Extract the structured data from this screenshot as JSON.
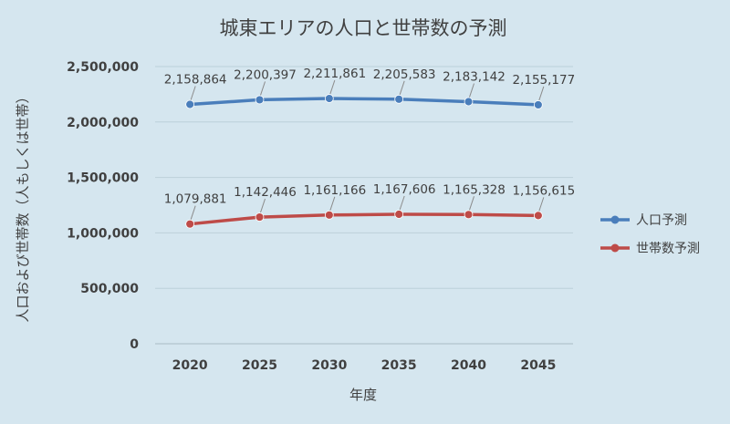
{
  "chart_data": {
    "type": "line",
    "title": "城東エリアの人口と世帯数の予測",
    "xlabel": "年度",
    "ylabel": "人口および世帯数（人もしくは世帯）",
    "categories": [
      "2020",
      "2025",
      "2030",
      "2035",
      "2040",
      "2045"
    ],
    "ylim": [
      0,
      2500000
    ],
    "yticks": [
      0,
      500000,
      1000000,
      1500000,
      2000000,
      2500000
    ],
    "ytick_labels": [
      "0",
      "500,000",
      "1,000,000",
      "1,500,000",
      "2,000,000",
      "2,500,000"
    ],
    "grid": true,
    "legend_position": "right",
    "series": [
      {
        "name": "人口予測",
        "color": "#4a7ebb",
        "values": [
          2158864,
          2200397,
          2211861,
          2205583,
          2183142,
          2155177
        ],
        "labels": [
          "2,158,864",
          "2,200,397",
          "2,211,861",
          "2,205,583",
          "2,183,142",
          "2,155,177"
        ]
      },
      {
        "name": "世帯数予測",
        "color": "#be4b48",
        "values": [
          1079881,
          1142446,
          1161166,
          1167606,
          1165328,
          1156615
        ],
        "labels": [
          "1,079,881",
          "1,142,446",
          "1,161,166",
          "1,167,606",
          "1,165,328",
          "1,156,615"
        ]
      }
    ]
  }
}
